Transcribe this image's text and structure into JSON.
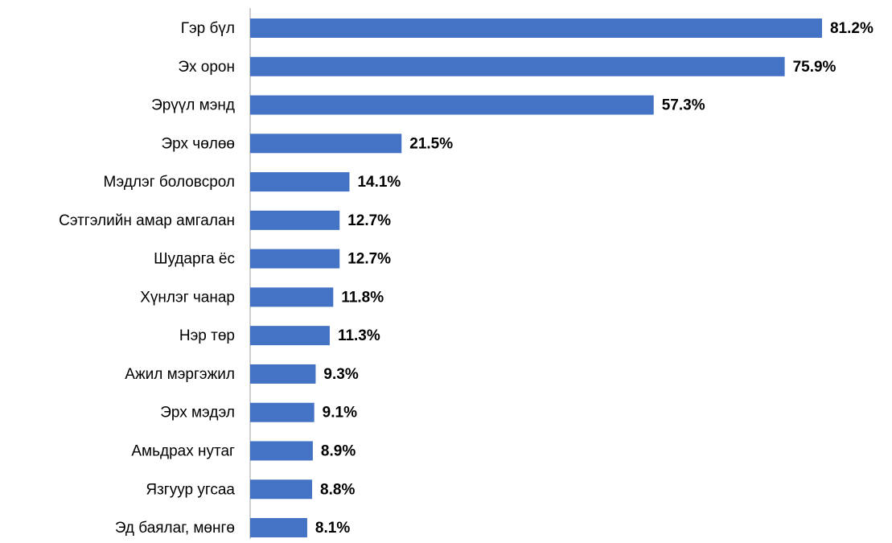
{
  "chart_data": {
    "type": "bar",
    "orientation": "horizontal",
    "color": "#4472c4",
    "categories": [
      "Гэр бүл",
      "Эх орон",
      "Эрүүл мэнд",
      "Эрх чөлөө",
      "Мэдлэг боловсрол",
      "Сэтгэлийн амар амгалан",
      "Шударга ёс",
      "Хүнлэг чанар",
      "Нэр төр",
      "Ажил мэргэжил",
      "Эрх мэдэл",
      "Амьдрах нутаг",
      "Язгуур угсаа",
      "Эд баялаг, мөнгө"
    ],
    "values": [
      81.2,
      75.9,
      57.3,
      21.5,
      14.1,
      12.7,
      12.7,
      11.8,
      11.3,
      9.3,
      9.1,
      8.9,
      8.8,
      8.1
    ],
    "value_labels": [
      "81.2%",
      "75.9%",
      "57.3%",
      "21.5%",
      "14.1%",
      "12.7%",
      "12.7%",
      "11.8%",
      "11.3%",
      "9.3%",
      "9.1%",
      "8.9%",
      "8.8%",
      "8.1%"
    ]
  }
}
